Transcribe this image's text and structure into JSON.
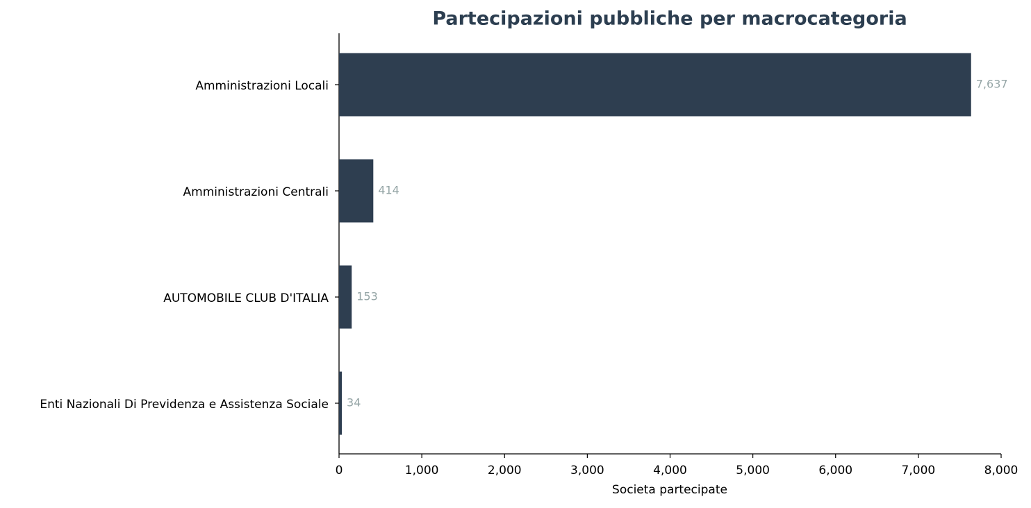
{
  "chart_data": {
    "type": "bar",
    "orientation": "horizontal",
    "title": "Partecipazioni pubbliche per macrocategoria",
    "xlabel": "Societa partecipate",
    "categories": [
      "Amministrazioni Locali",
      "Amministrazioni Centrali",
      "AUTOMOBILE CLUB D'ITALIA",
      "Enti Nazionali Di Previdenza e Assistenza Sociale"
    ],
    "values": [
      7637,
      414,
      153,
      34
    ],
    "value_labels": [
      "7,637",
      "414",
      "153",
      "34"
    ],
    "color": "#2e3e50",
    "xlim": [
      0,
      8000
    ],
    "xticks": [
      0,
      {
        "value": 1000,
        "label": "1,000"
      },
      {
        "value": 2000,
        "label": "2,000"
      },
      {
        "value": 3000,
        "label": "3,000"
      },
      {
        "value": 4000,
        "label": "4,000"
      },
      {
        "value": 5000,
        "label": "5,000"
      },
      {
        "value": 6000,
        "label": "6,000"
      },
      {
        "value": 7000,
        "label": "7,000"
      },
      {
        "value": 8000,
        "label": "8,000"
      }
    ],
    "grid": false
  }
}
